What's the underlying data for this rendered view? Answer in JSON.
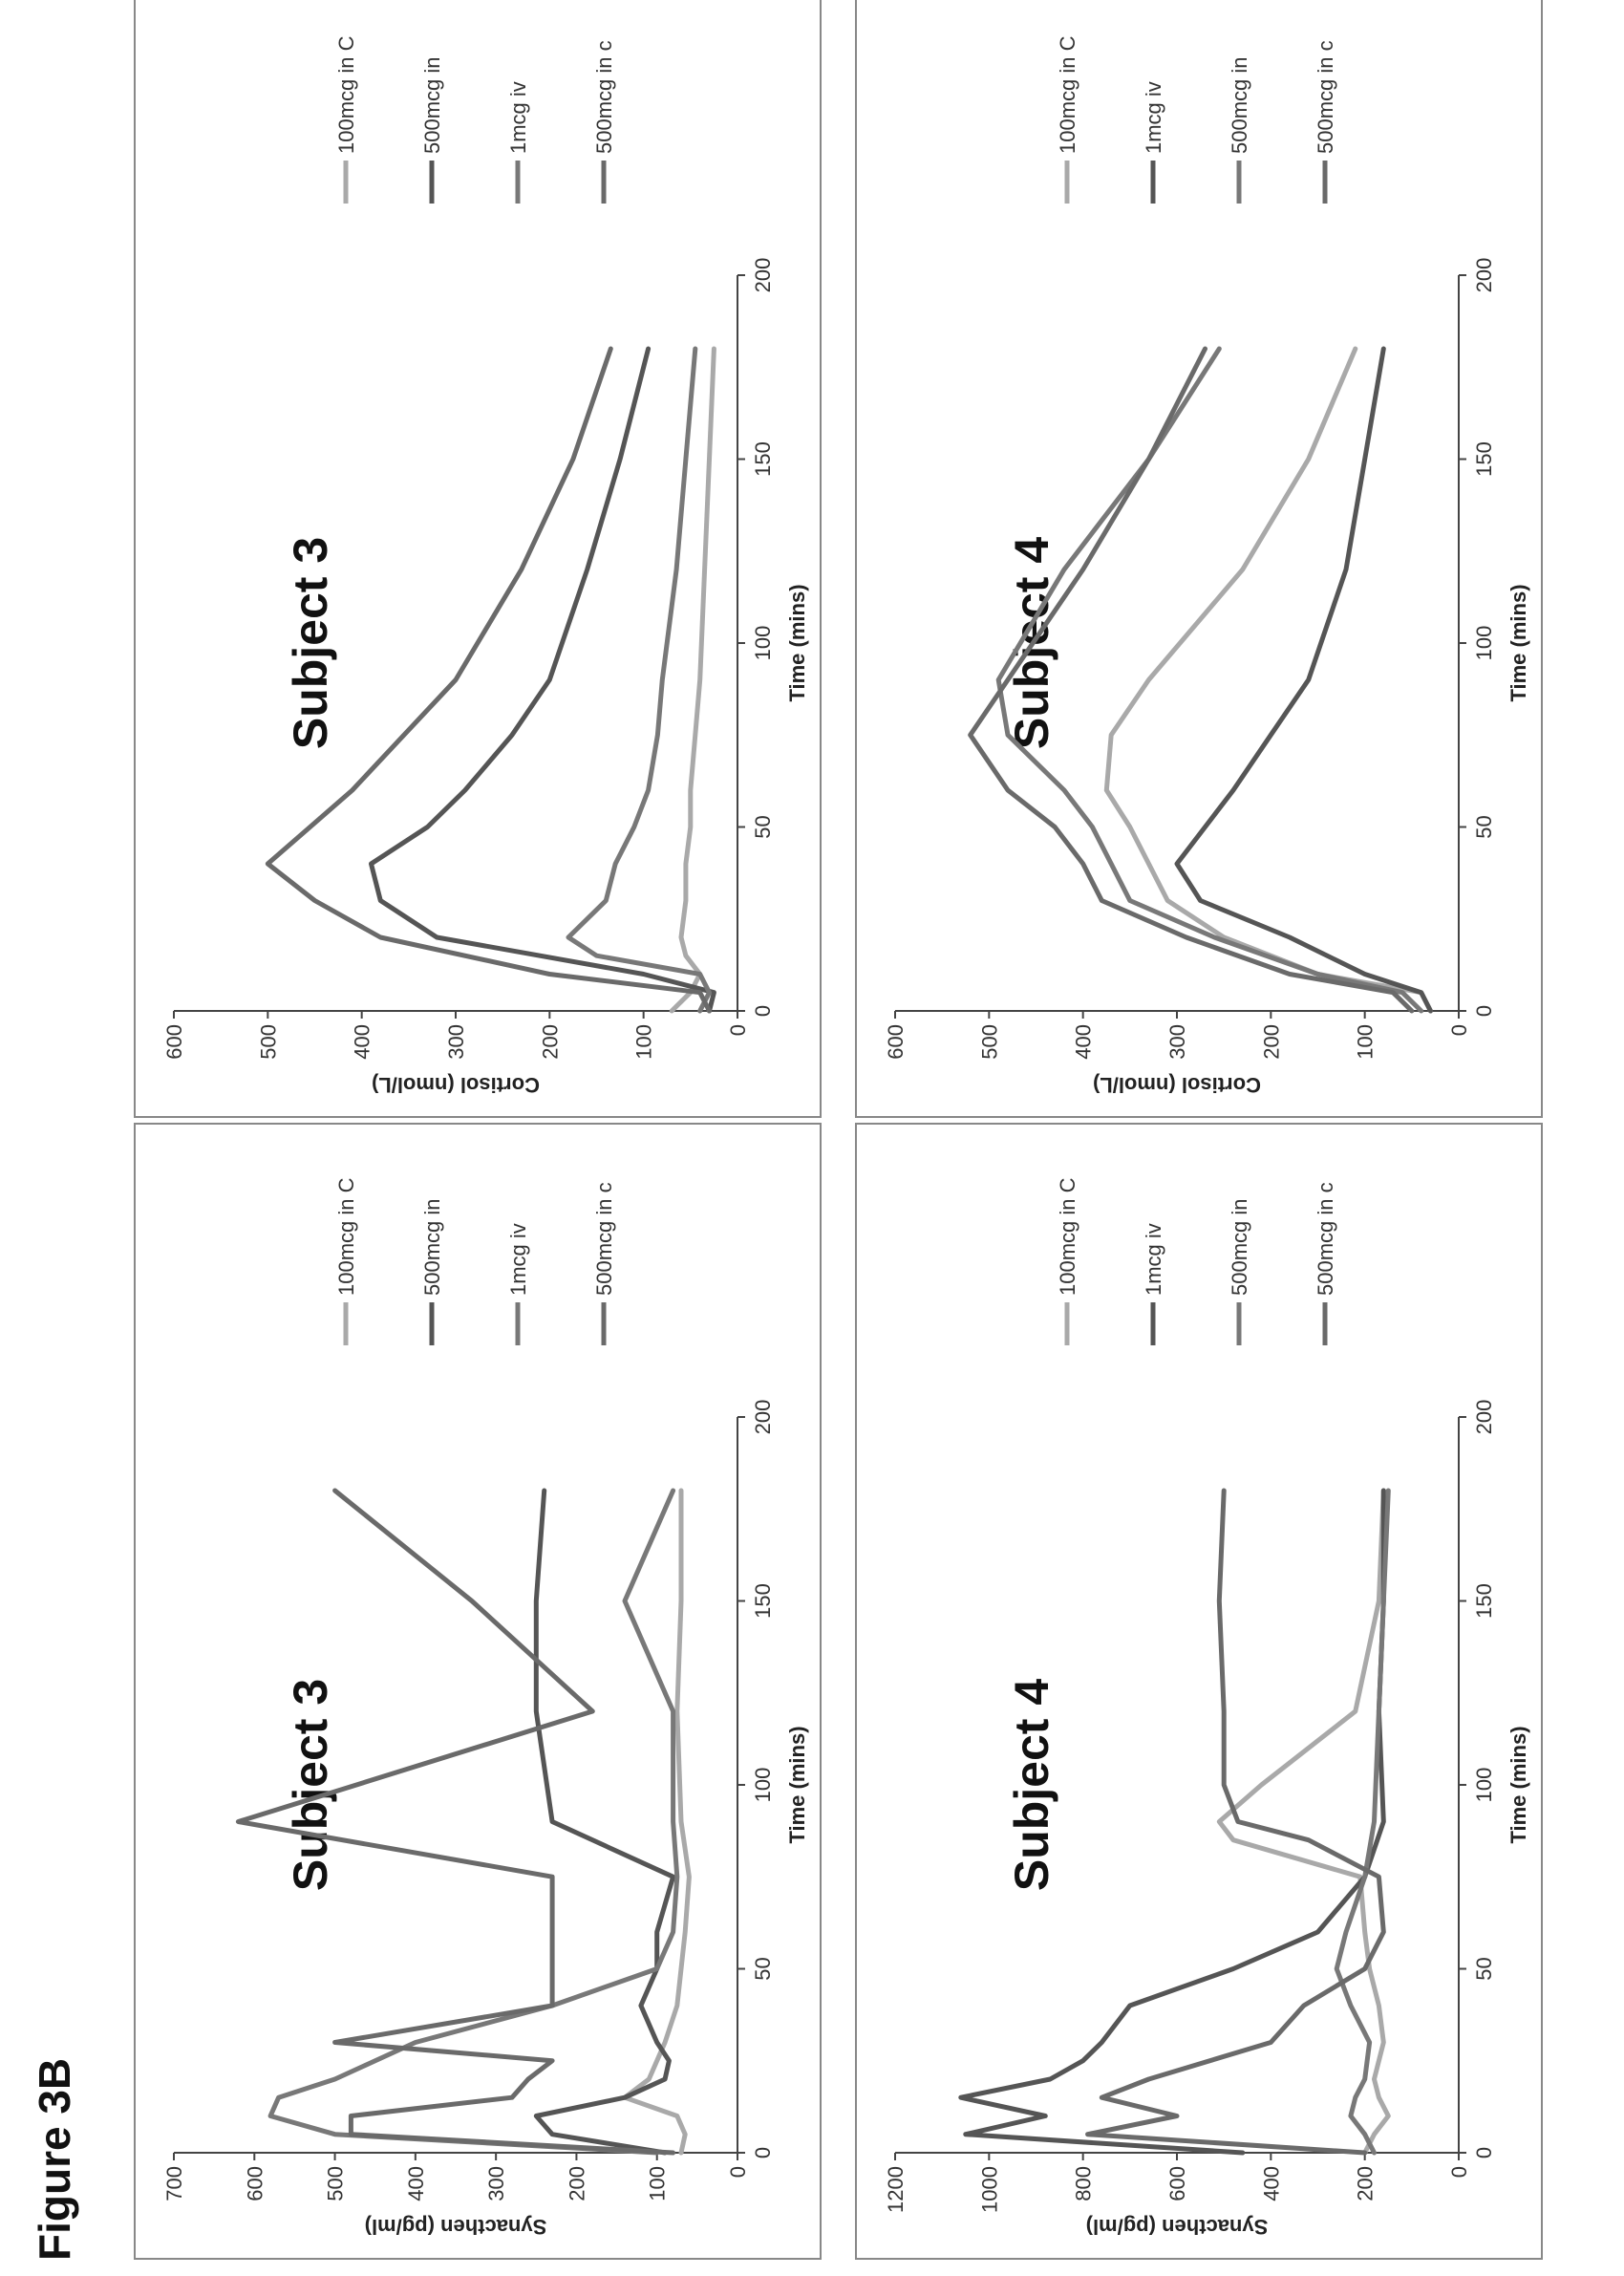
{
  "figure": {
    "label": "Figure 3B"
  },
  "colors": {
    "light": "#a9a9a9",
    "mid": "#787878",
    "dark": "#555555",
    "darker": "#6a6a6a",
    "axis": "#444444",
    "frame": "#888888"
  },
  "chart_data": [
    {
      "id": "tl",
      "type": "line",
      "title": "Subject 3",
      "xlabel": "Time (mins)",
      "ylabel": "Synacthen (pg/ml)",
      "xlim": [
        0,
        200
      ],
      "ylim": [
        0,
        700
      ],
      "xticks": [
        0,
        50,
        100,
        150,
        200
      ],
      "yticks": [
        0,
        100,
        200,
        300,
        400,
        500,
        600,
        700
      ],
      "grid": false,
      "legend_position": "right",
      "series": [
        {
          "name": "100mcg in C",
          "color": "#a9a9a9",
          "x": [
            0,
            5,
            10,
            15,
            20,
            30,
            40,
            50,
            60,
            75,
            90,
            120,
            150,
            180
          ],
          "y": [
            70,
            65,
            75,
            140,
            110,
            90,
            75,
            70,
            65,
            60,
            70,
            75,
            70,
            70
          ]
        },
        {
          "name": "500mcg in",
          "color": "#555555",
          "x": [
            0,
            5,
            10,
            15,
            20,
            25,
            30,
            40,
            50,
            60,
            75,
            90,
            120,
            150,
            180
          ],
          "y": [
            90,
            230,
            250,
            140,
            90,
            85,
            100,
            120,
            100,
            100,
            80,
            230,
            250,
            250,
            240
          ]
        },
        {
          "name": "1mcg iv",
          "color": "#787878",
          "x": [
            0,
            5,
            10,
            15,
            20,
            30,
            40,
            50,
            60,
            75,
            90,
            120,
            150,
            180
          ],
          "y": [
            100,
            500,
            580,
            570,
            500,
            400,
            230,
            100,
            80,
            75,
            80,
            80,
            140,
            80
          ]
        },
        {
          "name": "500mcg in c",
          "color": "#6a6a6a",
          "x": [
            0,
            5,
            10,
            15,
            20,
            25,
            30,
            40,
            50,
            60,
            75,
            90,
            120,
            150,
            180
          ],
          "y": [
            80,
            480,
            480,
            280,
            260,
            230,
            500,
            230,
            230,
            230,
            230,
            620,
            180,
            330,
            500
          ]
        }
      ]
    },
    {
      "id": "bl",
      "type": "line",
      "title": "Subject 4",
      "xlabel": "Time (mins)",
      "ylabel": "Synacthen (pg/ml)",
      "xlim": [
        0,
        200
      ],
      "ylim": [
        0,
        1200
      ],
      "xticks": [
        0,
        50,
        100,
        150,
        200
      ],
      "yticks": [
        0,
        200,
        400,
        600,
        800,
        1000,
        1200
      ],
      "grid": false,
      "legend_position": "right",
      "series": [
        {
          "name": "100mcg in C",
          "color": "#a9a9a9",
          "x": [
            0,
            5,
            10,
            15,
            20,
            30,
            40,
            50,
            60,
            75,
            85,
            90,
            100,
            120,
            150,
            180
          ],
          "y": [
            200,
            180,
            150,
            170,
            180,
            160,
            170,
            190,
            200,
            210,
            480,
            510,
            420,
            220,
            170,
            160
          ]
        },
        {
          "name": "1mcg iv",
          "color": "#555555",
          "x": [
            0,
            5,
            10,
            15,
            20,
            25,
            30,
            40,
            50,
            60,
            75,
            90,
            120,
            150,
            180
          ],
          "y": [
            460,
            1050,
            880,
            1060,
            870,
            800,
            760,
            700,
            480,
            300,
            200,
            160,
            170,
            160,
            160
          ]
        },
        {
          "name": "500mcg in",
          "color": "#787878",
          "x": [
            0,
            5,
            10,
            15,
            20,
            30,
            40,
            50,
            60,
            75,
            90,
            120,
            150,
            180
          ],
          "y": [
            180,
            200,
            230,
            220,
            200,
            190,
            230,
            260,
            240,
            200,
            180,
            170,
            160,
            150
          ]
        },
        {
          "name": "500mcg in c",
          "color": "#6a6a6a",
          "x": [
            0,
            5,
            10,
            15,
            20,
            30,
            40,
            50,
            60,
            75,
            85,
            90,
            100,
            120,
            150,
            180
          ],
          "y": [
            200,
            790,
            600,
            760,
            660,
            400,
            330,
            200,
            160,
            170,
            320,
            470,
            500,
            500,
            510,
            500
          ]
        }
      ]
    },
    {
      "id": "tr",
      "type": "line",
      "title": "Subject 3",
      "xlabel": "Time (mins)",
      "ylabel": "Cortisol (nmol/L)",
      "xlim": [
        0,
        200
      ],
      "ylim": [
        0,
        600
      ],
      "xticks": [
        0,
        50,
        100,
        150,
        200
      ],
      "yticks": [
        0,
        100,
        200,
        300,
        400,
        500,
        600
      ],
      "grid": false,
      "legend_position": "right",
      "series": [
        {
          "name": "100mcg in C",
          "color": "#a9a9a9",
          "x": [
            0,
            5,
            10,
            15,
            20,
            30,
            40,
            50,
            60,
            75,
            90,
            120,
            150,
            180
          ],
          "y": [
            70,
            50,
            40,
            55,
            60,
            55,
            55,
            50,
            50,
            45,
            40,
            35,
            30,
            25
          ]
        },
        {
          "name": "500mcg in",
          "color": "#555555",
          "x": [
            0,
            5,
            10,
            20,
            30,
            40,
            50,
            60,
            75,
            90,
            120,
            150,
            180
          ],
          "y": [
            30,
            25,
            100,
            320,
            380,
            390,
            330,
            290,
            240,
            200,
            160,
            125,
            95
          ]
        },
        {
          "name": "1mcg iv",
          "color": "#787878",
          "x": [
            0,
            5,
            10,
            15,
            20,
            30,
            40,
            50,
            60,
            75,
            90,
            120,
            150,
            180
          ],
          "y": [
            40,
            30,
            40,
            150,
            180,
            140,
            130,
            110,
            95,
            85,
            80,
            65,
            55,
            45
          ]
        },
        {
          "name": "500mcg in c",
          "color": "#6a6a6a",
          "x": [
            0,
            5,
            10,
            20,
            30,
            40,
            50,
            60,
            75,
            90,
            120,
            150,
            180
          ],
          "y": [
            30,
            40,
            200,
            380,
            450,
            500,
            455,
            410,
            355,
            300,
            230,
            175,
            135
          ]
        }
      ]
    },
    {
      "id": "br",
      "type": "line",
      "title": "Subject 4",
      "xlabel": "Time (mins)",
      "ylabel": "Cortisol (nmol/L)",
      "xlim": [
        0,
        200
      ],
      "ylim": [
        0,
        600
      ],
      "xticks": [
        0,
        50,
        100,
        150,
        200
      ],
      "yticks": [
        0,
        100,
        200,
        300,
        400,
        500,
        600
      ],
      "grid": false,
      "legend_position": "right",
      "series": [
        {
          "name": "100mcg in C",
          "color": "#a9a9a9",
          "x": [
            0,
            5,
            10,
            20,
            30,
            40,
            50,
            60,
            75,
            90,
            120,
            150,
            180
          ],
          "y": [
            30,
            40,
            150,
            250,
            310,
            330,
            350,
            375,
            370,
            330,
            230,
            160,
            110
          ]
        },
        {
          "name": "1mcg iv",
          "color": "#555555",
          "x": [
            0,
            5,
            10,
            20,
            30,
            40,
            50,
            60,
            75,
            90,
            120,
            150,
            180
          ],
          "y": [
            30,
            40,
            100,
            180,
            275,
            300,
            270,
            240,
            200,
            160,
            120,
            100,
            80
          ]
        },
        {
          "name": "500mcg in",
          "color": "#787878",
          "x": [
            0,
            5,
            10,
            20,
            30,
            40,
            50,
            60,
            75,
            90,
            120,
            150,
            180
          ],
          "y": [
            40,
            60,
            150,
            260,
            350,
            370,
            390,
            420,
            480,
            490,
            420,
            330,
            255
          ]
        },
        {
          "name": "500mcg in c",
          "color": "#6a6a6a",
          "x": [
            0,
            5,
            10,
            20,
            30,
            40,
            50,
            60,
            75,
            90,
            120,
            150,
            180
          ],
          "y": [
            50,
            70,
            180,
            290,
            380,
            400,
            430,
            480,
            520,
            480,
            400,
            330,
            270
          ]
        }
      ]
    }
  ]
}
